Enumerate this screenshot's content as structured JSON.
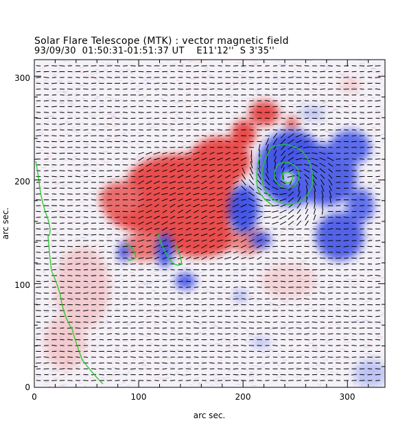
{
  "header": {
    "title": "Solar Flare Telescope (MTK) : vector magnetic field",
    "subtitle": "93/09/30  01:50:31-01:51:37 UT    E11'12''  S 3'35''"
  },
  "chart_data": {
    "type": "heatmap",
    "xlabel": "arc sec.",
    "ylabel": "arc sec.",
    "xlim": [
      0,
      336
    ],
    "ylim": [
      0,
      316
    ],
    "x_ticks": [
      "0",
      "100",
      "200",
      "300"
    ],
    "y_ticks": [
      "0",
      "100",
      "200",
      "300"
    ],
    "colors": {
      "positive_polarity": "#e83b3b",
      "negative_polarity": "#3b4ee8",
      "contour": "#22cc22",
      "vectors": "#000000"
    }
  }
}
